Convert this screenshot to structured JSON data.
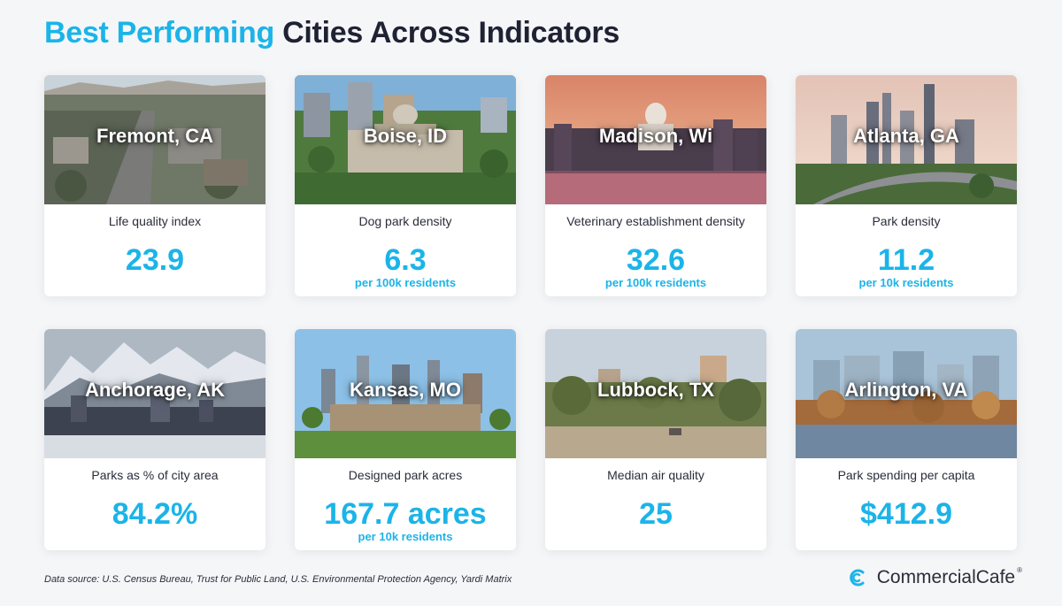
{
  "title": {
    "accent": "Best Performing",
    "rest": "Cities Across Indicators"
  },
  "cards": [
    {
      "city": "Fremont, CA",
      "metric": "Life quality index",
      "value": "23.9",
      "unit": ""
    },
    {
      "city": "Boise, ID",
      "metric": "Dog park density",
      "value": "6.3",
      "unit": "per 100k residents"
    },
    {
      "city": "Madison, Wi",
      "metric": "Veterinary establishment density",
      "value": "32.6",
      "unit": "per 100k residents"
    },
    {
      "city": "Atlanta, GA",
      "metric": "Park density",
      "value": "11.2",
      "unit": "per 10k residents"
    },
    {
      "city": "Anchorage, AK",
      "metric": "Parks as % of city area",
      "value": "84.2%",
      "unit": ""
    },
    {
      "city": "Kansas, MO",
      "metric": "Designed park acres",
      "value": "167.7 acres",
      "unit": "per 10k residents"
    },
    {
      "city": "Lubbock, TX",
      "metric": "Median air quality",
      "value": "25",
      "unit": ""
    },
    {
      "city": "Arlington, VA",
      "metric": "Park spending per capita",
      "value": "$412.9",
      "unit": ""
    }
  ],
  "footer": {
    "source": "Data source: U.S. Census Bureau, Trust for Public Land, U.S. Environmental Protection Agency, Yardi Matrix",
    "brand": "CommercialCafe",
    "brand_mark": "®",
    "logo_icon": "commercialcafe-logo-icon"
  },
  "colors": {
    "accent": "#1bb4e8",
    "text": "#1f2233",
    "background": "#f5f6f8"
  }
}
